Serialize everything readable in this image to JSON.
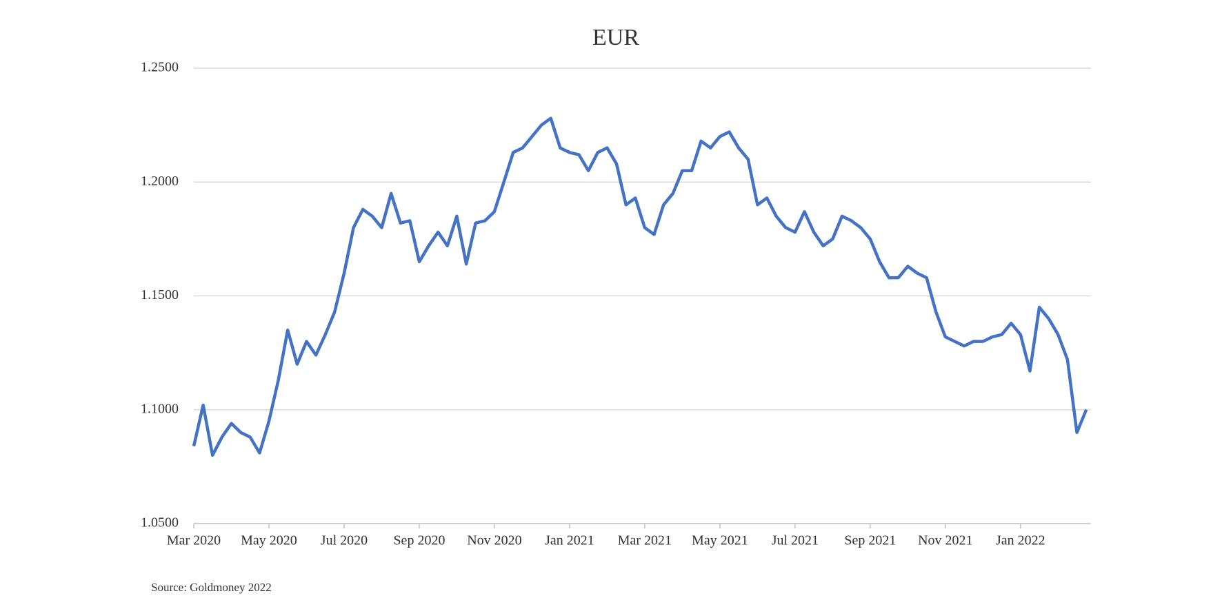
{
  "chart_data": {
    "type": "line",
    "title": "EUR",
    "source": "Source: Goldmoney 2022",
    "categories": [
      "Mar 2020",
      null,
      null,
      null,
      null,
      null,
      null,
      null,
      "May 2020",
      null,
      null,
      null,
      null,
      null,
      null,
      null,
      "Jul 2020",
      null,
      null,
      null,
      null,
      null,
      null,
      null,
      "Sep 2020",
      null,
      null,
      null,
      null,
      null,
      null,
      null,
      "Nov 2020",
      null,
      null,
      null,
      null,
      null,
      null,
      null,
      "Jan 2021",
      null,
      null,
      null,
      null,
      null,
      null,
      null,
      "Mar 2021",
      null,
      null,
      null,
      null,
      null,
      null,
      null,
      "May 2021",
      null,
      null,
      null,
      null,
      null,
      null,
      null,
      "Jul 2021",
      null,
      null,
      null,
      null,
      null,
      null,
      null,
      "Sep 2021",
      null,
      null,
      null,
      null,
      null,
      null,
      null,
      "Nov 2021",
      null,
      null,
      null,
      null,
      null,
      null,
      null,
      "Jan 2022",
      null,
      null,
      null,
      null,
      null,
      null,
      null
    ],
    "series": [
      {
        "name": "EUR",
        "color": "#4472c4",
        "values": [
          1.084,
          1.102,
          1.08,
          1.088,
          1.094,
          1.09,
          1.088,
          1.081,
          1.095,
          1.113,
          1.135,
          1.12,
          1.13,
          1.124,
          1.133,
          1.143,
          1.16,
          1.18,
          1.188,
          1.185,
          1.18,
          1.195,
          1.182,
          1.183,
          1.165,
          1.172,
          1.178,
          1.172,
          1.185,
          1.164,
          1.182,
          1.183,
          1.187,
          1.2,
          1.213,
          1.215,
          1.22,
          1.225,
          1.228,
          1.215,
          1.213,
          1.212,
          1.205,
          1.213,
          1.215,
          1.208,
          1.19,
          1.193,
          1.18,
          1.177,
          1.19,
          1.195,
          1.205,
          1.205,
          1.218,
          1.215,
          1.22,
          1.222,
          1.215,
          1.21,
          1.19,
          1.193,
          1.185,
          1.18,
          1.178,
          1.187,
          1.178,
          1.172,
          1.175,
          1.185,
          1.183,
          1.18,
          1.175,
          1.165,
          1.158,
          1.158,
          1.163,
          1.16,
          1.158,
          1.143,
          1.132,
          1.13,
          1.128,
          1.13,
          1.13,
          1.132,
          1.133,
          1.138,
          1.133,
          1.117,
          1.145,
          1.14,
          1.133,
          1.122,
          1.09,
          1.1
        ]
      }
    ],
    "ylim": [
      1.05,
      1.25
    ],
    "yticks": [
      {
        "value": 1.05,
        "label": "1.0500"
      },
      {
        "value": 1.1,
        "label": "1.1000"
      },
      {
        "value": 1.15,
        "label": "1.1500"
      },
      {
        "value": 1.2,
        "label": "1.2000"
      },
      {
        "value": 1.25,
        "label": "1.2500"
      }
    ],
    "grid": true
  }
}
